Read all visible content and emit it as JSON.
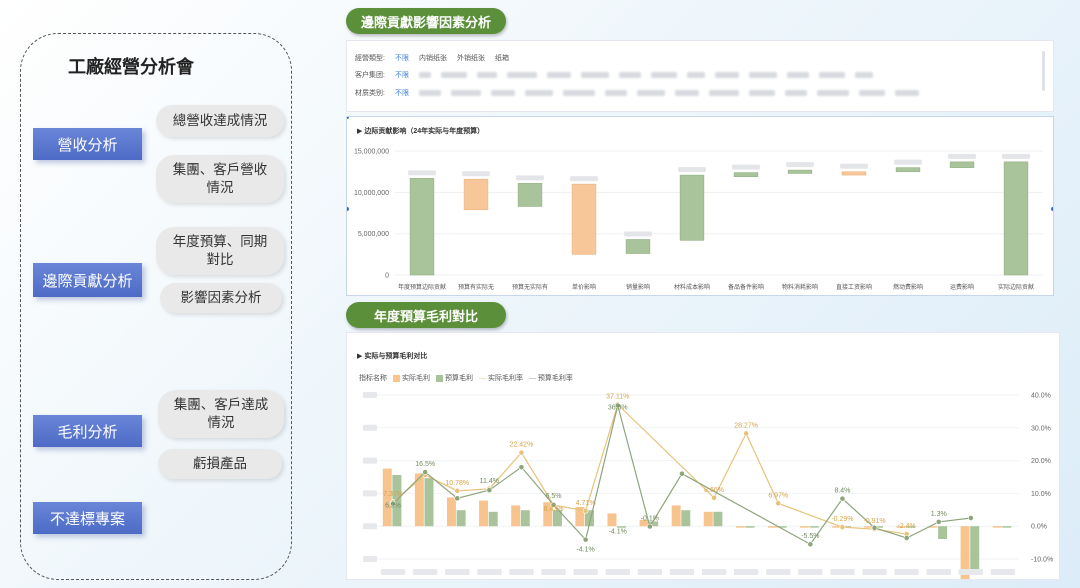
{
  "nav": {
    "title": "工廠經營分析會",
    "categories": [
      {
        "label": "營收分析",
        "items": [
          "總營收達成情況",
          "集團、客戶營收情況"
        ]
      },
      {
        "label": "邊際貢獻分析",
        "items": [
          "年度預算、同期對比",
          "影響因素分析"
        ]
      },
      {
        "label": "毛利分析",
        "items": [
          "集團、客戶達成情況",
          "虧損產品"
        ]
      },
      {
        "label": "不達標專案",
        "items": []
      }
    ]
  },
  "section1": {
    "header": "邊際貢獻影響因素分析",
    "filters": {
      "row1_label": "經營類型:",
      "row1_options": [
        "不限",
        "内销纸张",
        "外销纸张",
        "纸箱"
      ],
      "row2_label": "客户集团:",
      "row2_selected": "不限",
      "row3_label": "材质类别:",
      "row3_selected": "不限"
    },
    "chart_title": "边际贡献影响（24年实际与年度预算）"
  },
  "section2": {
    "header": "年度預算毛利對比",
    "chart_title": "实际与预算毛利对比",
    "legend_label": "指标名称",
    "legend": [
      "实际毛利",
      "预算毛利",
      "实际毛利率",
      "预算毛利率"
    ]
  },
  "chart_data": [
    {
      "type": "bar",
      "subtype": "waterfall",
      "title": "边际贡献影响（24年实际与年度预算）",
      "categories": [
        "年度预算边际贡献",
        "预算有实际无",
        "预算无实际有",
        "单价影响",
        "销量影响",
        "材料成本影响",
        "备品备件影响",
        "物料消耗影响",
        "直接工资影响",
        "燃动费影响",
        "运费影响",
        "实际边际贡献"
      ],
      "ranges": [
        [
          0,
          11700000
        ],
        [
          7900000,
          11600000
        ],
        [
          8300000,
          11100000
        ],
        [
          2500000,
          11000000
        ],
        [
          2600000,
          4300000
        ],
        [
          4200000,
          12100000
        ],
        [
          11900000,
          12400000
        ],
        [
          12300000,
          12700000
        ],
        [
          12100000,
          12500000
        ],
        [
          12500000,
          13000000
        ],
        [
          13000000,
          13700000
        ],
        [
          0,
          13700000
        ]
      ],
      "direction": [
        "total",
        "down",
        "up",
        "down",
        "up",
        "up",
        "up",
        "up",
        "down",
        "up",
        "up",
        "total"
      ],
      "yticks": [
        "0",
        "5,000,000",
        "10,000,000",
        "15,000,000"
      ],
      "ylim": [
        0,
        15500000
      ],
      "colors": {
        "up": "#a9c49a",
        "down": "#f7c79a",
        "total": "#a9c49a"
      }
    },
    {
      "type": "bar",
      "subtype": "bar-line-combo",
      "title": "实际与预算毛利对比",
      "series": [
        {
          "name": "实际毛利",
          "values": [
            18,
            16.5,
            9,
            8,
            6.5,
            7.5,
            6,
            4,
            2,
            6.5,
            4.5,
            0,
            0,
            0,
            0,
            0,
            0,
            0,
            -17,
            0
          ],
          "color": "#f7c48e"
        },
        {
          "name": "预算毛利",
          "values": [
            16,
            15,
            5,
            4.5,
            5,
            5,
            5,
            0,
            1.5,
            5,
            4.5,
            0,
            0,
            0,
            0,
            0,
            0,
            -4,
            -14,
            0
          ],
          "color": "#a9c49a"
        },
        {
          "name": "实际毛利率",
          "values": [
            7.37,
            15.6,
            10.78,
            11.4,
            22.42,
            6.43,
            4.71,
            37.11,
            null,
            null,
            8.66,
            28.27,
            6.97,
            null,
            -0.29,
            -0.91,
            -2.4,
            null,
            null,
            null
          ],
          "color": "#e8c27a"
        },
        {
          "name": "预算毛利率",
          "values": [
            6.9,
            16.5,
            8.5,
            11.0,
            18.0,
            6.5,
            -4.1,
            36.8,
            -0.1,
            16.0,
            null,
            null,
            null,
            -5.5,
            8.4,
            -0.5,
            -3.6,
            1.3,
            2.5,
            null
          ],
          "color": "#8ea57c"
        }
      ],
      "data_labels": [
        "7.37%",
        "6.9%",
        "16.5%",
        "10.78%",
        "11.4%",
        "22.42%",
        "6.5%",
        "6.43%",
        "4.71%",
        "-4.1%",
        "-4.1%",
        "37.11%",
        "36.8%",
        "-0.1%",
        "8.66%",
        "28.27%",
        "6.97%",
        "-5.5%",
        "8.4%",
        "-0.29%",
        "-0.91%",
        "-2.4%",
        "1.3%"
      ],
      "y2ticks": [
        "-10.0%",
        "0.0%",
        "10.0%",
        "20.0%",
        "30.0%",
        "40.0%"
      ],
      "y2lim": [
        -10,
        40
      ]
    }
  ]
}
